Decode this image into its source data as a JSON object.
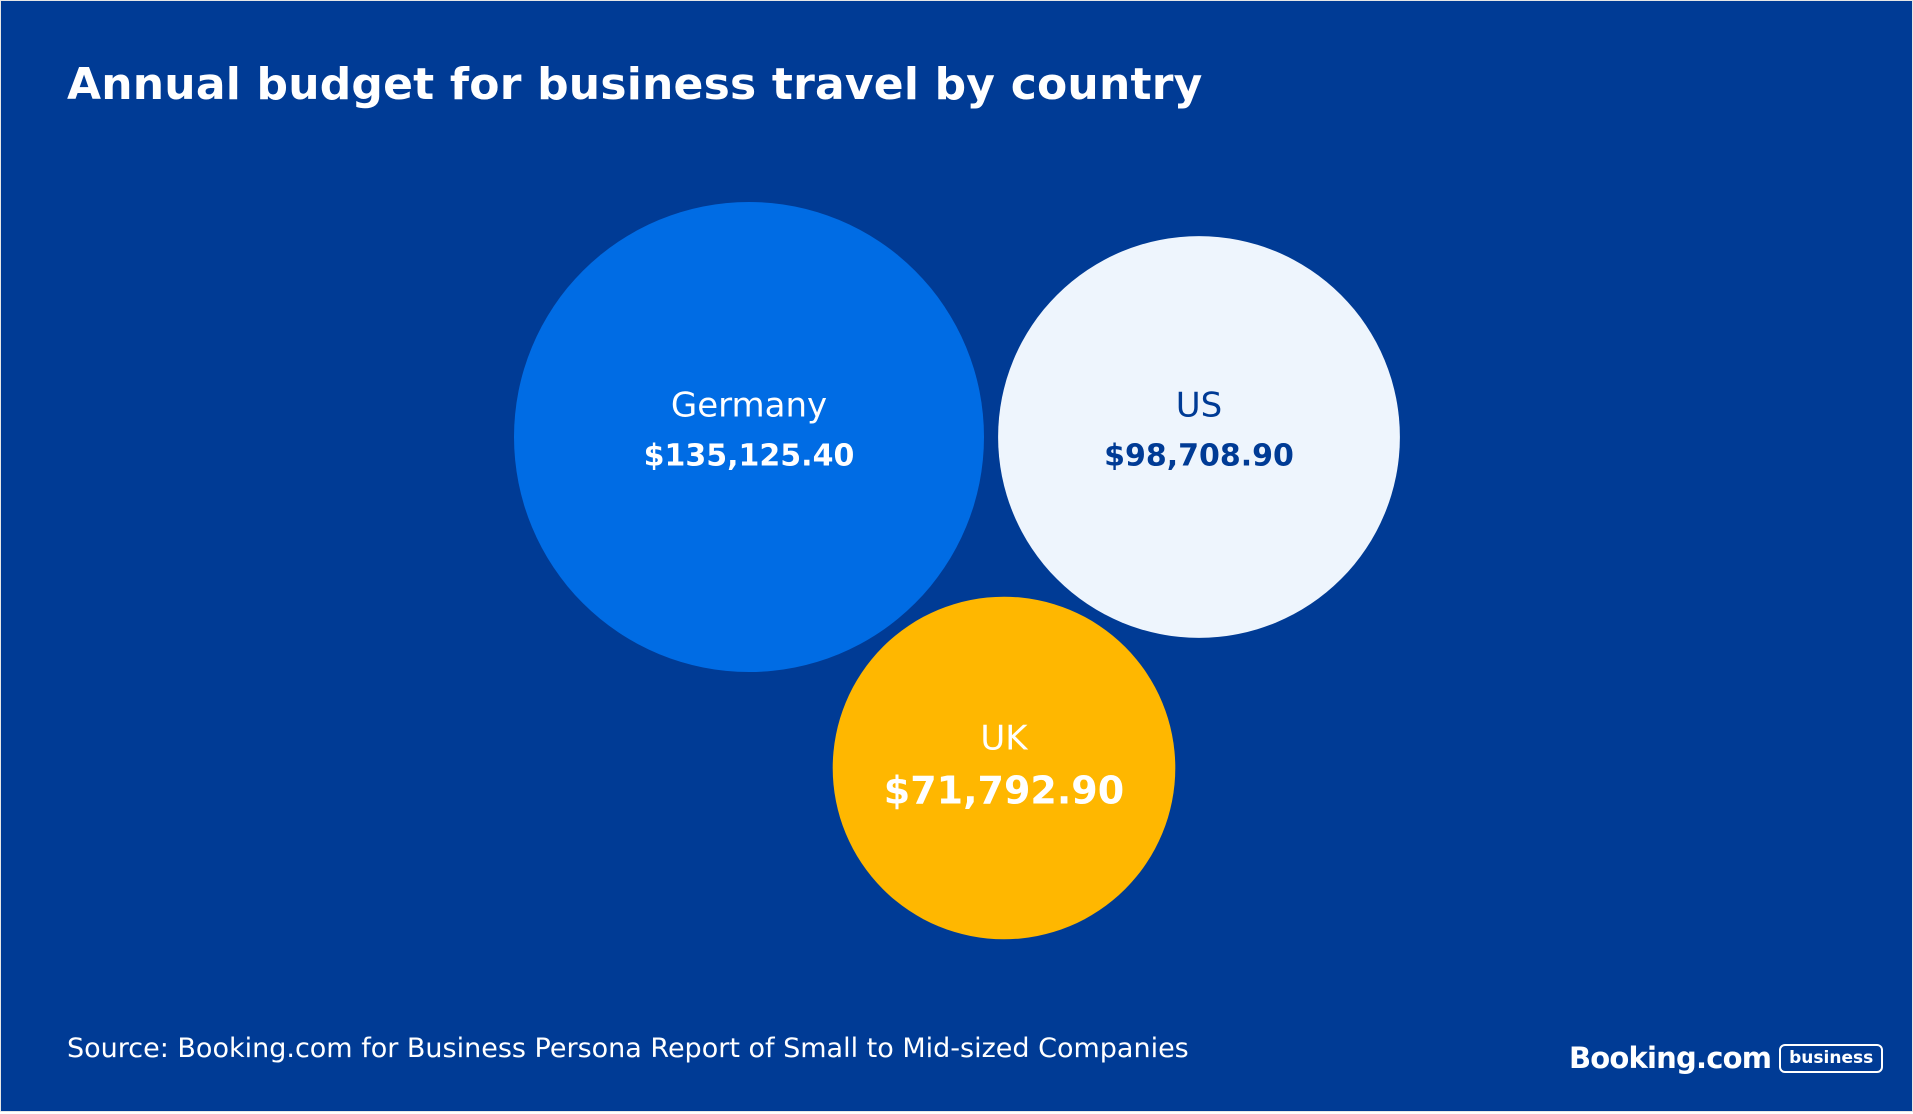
{
  "chart_data": {
    "type": "bubble",
    "title": "Annual budget for business travel by country",
    "points": [
      {
        "country": "Germany",
        "value": 135125.4,
        "label": "$135,125.40",
        "color": "#006CE4",
        "text_color": "#FFFFFF"
      },
      {
        "country": "US",
        "value": 98708.9,
        "label": "$98,708.90",
        "color": "#EEF5FD",
        "text_color": "#003B95"
      },
      {
        "country": "UK",
        "value": 71792.9,
        "label": "$71,792.90",
        "color": "#FFB700",
        "text_color": "#FFFFFF"
      }
    ],
    "source": "Source: Booking.com for Business Persona Report of Small to Mid-sized Companies"
  },
  "brand": {
    "name": "Booking.com",
    "badge": "business"
  },
  "colors": {
    "background": "#003B95",
    "text": "#FFFFFF"
  }
}
